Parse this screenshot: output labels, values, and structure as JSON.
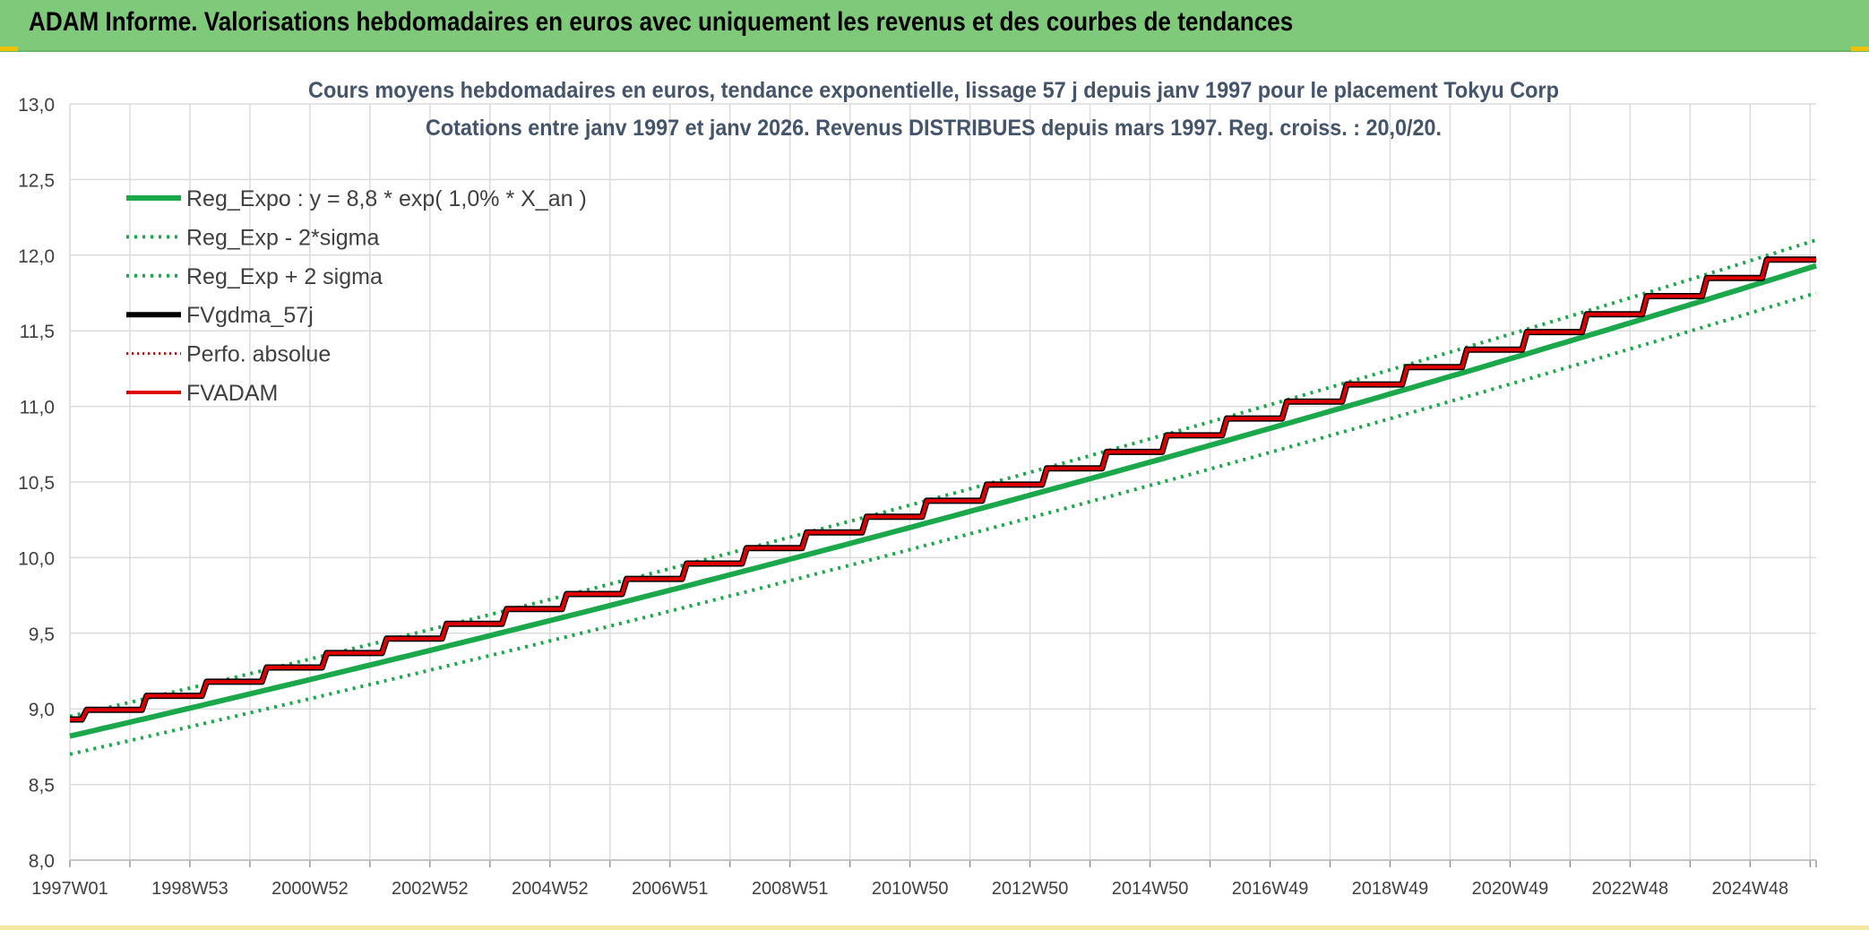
{
  "header": {
    "title": "ADAM Informe. Valorisations hebdomadaires en euros avec uniquement les revenus et des courbes de tendances"
  },
  "colors": {
    "header_bg": "#7fca7a",
    "reg_expo": "#1aa84a",
    "reg_band": "#1aa84a",
    "fvgdma": "#000000",
    "perfo": "#e00000",
    "fvadam": "#e00000",
    "grid": "#dcdcdc"
  },
  "chart_data": {
    "type": "line",
    "title": "Cours moyens hebdomadaires en euros, tendance exponentielle, lissage 57 j depuis janv 1997 pour le placement Tokyu Corp",
    "subtitle": "Cotations entre janv 1997 et janv 2026. Revenus DISTRIBUES depuis mars 1997. Reg. croiss. : 20,0/20.",
    "ylim": [
      8.0,
      13.0
    ],
    "yticks": [
      "8,0",
      "8,5",
      "9,0",
      "9,5",
      "10,0",
      "10,5",
      "11,0",
      "11,5",
      "12,0",
      "12,5",
      "13,0"
    ],
    "xlim": [
      1997.0,
      2026.1
    ],
    "xticks": [
      "1997W01",
      "1998W53",
      "2000W52",
      "2002W52",
      "2004W52",
      "2006W51",
      "2008W51",
      "2010W50",
      "2012W50",
      "2014W50",
      "2016W49",
      "2018W49",
      "2020W49",
      "2022W48",
      "2024W48"
    ],
    "grid": true,
    "legend_position": "top-left",
    "legend": [
      "Reg_Expo : y = 8,8 * exp( 1,0% *  X_an )",
      "Reg_Exp - 2*sigma",
      "Reg_Exp + 2 sigma",
      "FVgdma_57j",
      "Perfo. absolue",
      "FVADAM"
    ],
    "series": [
      {
        "name": "Reg_Expo : y = 8,8 * exp( 1,0% *  X_an )",
        "style": "solid-thick",
        "x": [
          1997.0,
          2026.1
        ],
        "y": [
          8.82,
          11.93
        ],
        "model": "exponential"
      },
      {
        "name": "Reg_Exp - 2*sigma",
        "style": "dotted",
        "x": [
          1997.0,
          2026.1
        ],
        "y": [
          8.7,
          11.75
        ],
        "model": "exponential"
      },
      {
        "name": "Reg_Exp + 2 sigma",
        "style": "dotted",
        "x": [
          1997.0,
          2026.1
        ],
        "y": [
          8.95,
          12.1
        ],
        "model": "exponential"
      },
      {
        "name": "FVgdma_57j",
        "style": "solid",
        "steps": "annual",
        "x": [
          1997.0,
          2026.1
        ],
        "y": [
          8.93,
          12.02
        ]
      },
      {
        "name": "Perfo. absolue",
        "style": "dotted",
        "steps": "annual",
        "x": [
          1997.0,
          2026.1
        ],
        "y": [
          8.93,
          12.02
        ]
      },
      {
        "name": "FVADAM",
        "style": "solid-thick",
        "steps": "annual",
        "x": [
          1997.0,
          2026.1
        ],
        "y": [
          8.93,
          12.02
        ]
      }
    ]
  }
}
